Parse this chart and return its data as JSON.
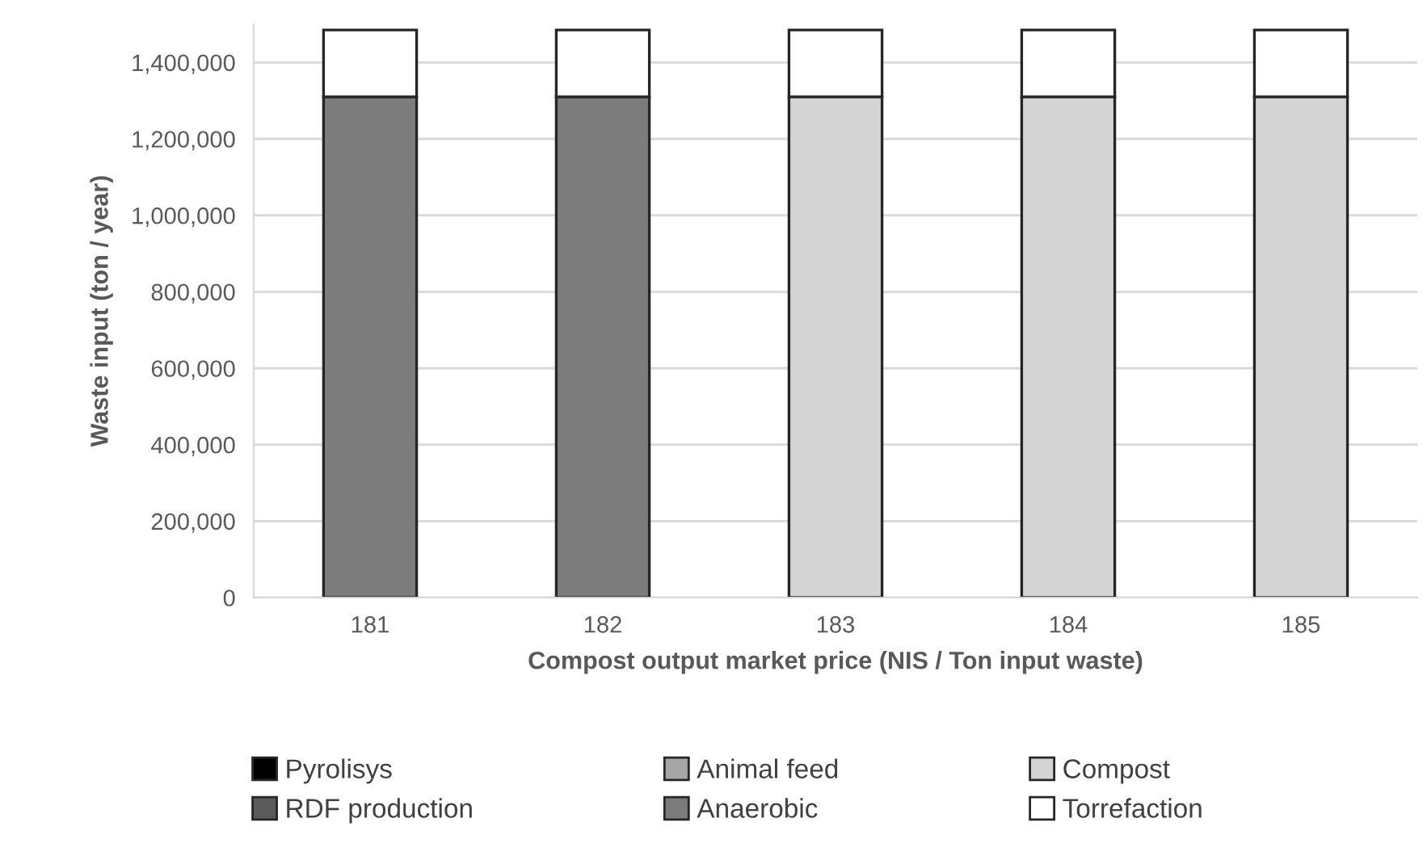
{
  "chart_data": {
    "type": "bar",
    "stacked": true,
    "xlabel": "Compost output market price (NIS / Ton input waste)",
    "ylabel": "Waste input (ton / year)",
    "categories": [
      "181",
      "182",
      "183",
      "184",
      "185"
    ],
    "series": [
      {
        "name": "Pyrolisys",
        "color": "#000000",
        "values": [
          0,
          0,
          0,
          0,
          0
        ]
      },
      {
        "name": "Animal feed",
        "color": "#a6a6a6",
        "values": [
          0,
          0,
          0,
          0,
          0
        ]
      },
      {
        "name": "Compost",
        "color": "#d4d4d4",
        "values": [
          0,
          0,
          1310000,
          1310000,
          1310000
        ]
      },
      {
        "name": "RDF production",
        "color": "#5a5a5a",
        "values": [
          0,
          0,
          0,
          0,
          0
        ]
      },
      {
        "name": "Anaerobic",
        "color": "#7c7c7c",
        "values": [
          1310000,
          1310000,
          0,
          0,
          0
        ]
      },
      {
        "name": "Torrefaction",
        "color": "#ffffff",
        "values": [
          175000,
          175000,
          175000,
          175000,
          175000
        ]
      }
    ],
    "ylim": [
      0,
      1500000
    ],
    "yticks": [
      {
        "value": 0,
        "label": "0"
      },
      {
        "value": 200000,
        "label": "200,000"
      },
      {
        "value": 400000,
        "label": "400,000"
      },
      {
        "value": 600000,
        "label": "600,000"
      },
      {
        "value": 800000,
        "label": "800,000"
      },
      {
        "value": 1000000,
        "label": "1,000,000"
      },
      {
        "value": 1200000,
        "label": "1,200,000"
      },
      {
        "value": 1400000,
        "label": "1,400,000"
      }
    ],
    "grid": "y",
    "legend": "bottom"
  }
}
